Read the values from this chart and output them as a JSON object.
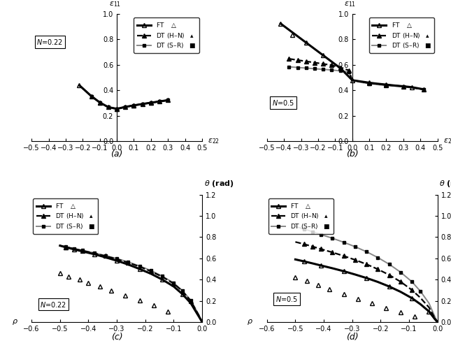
{
  "a_FT_x": [
    -0.22,
    -0.15,
    -0.1,
    -0.05,
    0.0,
    0.05,
    0.1,
    0.15,
    0.2,
    0.25,
    0.3
  ],
  "a_FT_y": [
    0.44,
    0.355,
    0.305,
    0.268,
    0.255,
    0.27,
    0.282,
    0.293,
    0.303,
    0.313,
    0.323
  ],
  "a_FT_mx": [
    -0.22,
    -0.1,
    0.0,
    0.1,
    0.2,
    0.3
  ],
  "a_FT_my": [
    0.44,
    0.305,
    0.255,
    0.282,
    0.303,
    0.323
  ],
  "a_DThn_mx": [
    -0.15,
    -0.1,
    -0.05,
    0.0,
    0.05,
    0.1,
    0.15,
    0.2,
    0.25
  ],
  "a_DThn_my": [
    0.355,
    0.305,
    0.268,
    0.255,
    0.27,
    0.282,
    0.293,
    0.303,
    0.313
  ],
  "a_DTsr_mx": [
    -0.15,
    -0.1,
    -0.05,
    0.0,
    0.05,
    0.1,
    0.15,
    0.2,
    0.25,
    0.3
  ],
  "a_DTsr_my": [
    0.355,
    0.305,
    0.268,
    0.255,
    0.27,
    0.282,
    0.293,
    0.303,
    0.313,
    0.323
  ],
  "b_FT_x": [
    -0.42,
    -0.37,
    -0.32,
    -0.27,
    -0.22,
    -0.17,
    -0.12,
    -0.07,
    -0.02,
    0.0,
    0.05,
    0.1,
    0.15,
    0.2,
    0.25,
    0.3,
    0.35,
    0.42
  ],
  "b_FT_y": [
    0.925,
    0.875,
    0.825,
    0.775,
    0.725,
    0.675,
    0.625,
    0.575,
    0.508,
    0.48,
    0.47,
    0.46,
    0.452,
    0.445,
    0.438,
    0.432,
    0.425,
    0.408
  ],
  "b_FT_mx": [
    -0.42,
    -0.35,
    -0.27,
    -0.17,
    -0.07,
    0.0,
    0.1,
    0.2,
    0.35,
    0.42
  ],
  "b_FT_my": [
    0.925,
    0.835,
    0.775,
    0.675,
    0.575,
    0.48,
    0.46,
    0.445,
    0.425,
    0.408
  ],
  "b_DThn_x": [
    -0.37,
    -0.32,
    -0.27,
    -0.22,
    -0.17,
    -0.12,
    -0.07,
    -0.02,
    0.0,
    0.05,
    0.1,
    0.15,
    0.2,
    0.3,
    0.42
  ],
  "b_DThn_y": [
    0.648,
    0.638,
    0.628,
    0.618,
    0.608,
    0.598,
    0.578,
    0.558,
    0.48,
    0.468,
    0.458,
    0.45,
    0.443,
    0.432,
    0.408
  ],
  "b_DThn_mx": [
    -0.37,
    -0.32,
    -0.27,
    -0.22,
    -0.17,
    -0.12,
    -0.07,
    -0.02,
    0.1,
    0.2,
    0.3
  ],
  "b_DThn_my": [
    0.648,
    0.638,
    0.628,
    0.618,
    0.608,
    0.598,
    0.578,
    0.558,
    0.458,
    0.443,
    0.432
  ],
  "b_DTsr_x": [
    -0.37,
    -0.32,
    -0.27,
    -0.22,
    -0.17,
    -0.12,
    -0.07,
    -0.02,
    0.0,
    0.05,
    0.1,
    0.15,
    0.2,
    0.3,
    0.42
  ],
  "b_DTsr_y": [
    0.585,
    0.58,
    0.575,
    0.57,
    0.565,
    0.56,
    0.553,
    0.545,
    0.48,
    0.463,
    0.453,
    0.445,
    0.438,
    0.428,
    0.408
  ],
  "b_DTsr_mx": [
    -0.37,
    -0.32,
    -0.27,
    -0.22,
    -0.17,
    -0.12,
    -0.07,
    -0.02,
    0.1,
    0.2,
    0.3,
    0.42
  ],
  "b_DTsr_my": [
    0.585,
    0.58,
    0.575,
    0.57,
    0.565,
    0.56,
    0.553,
    0.545,
    0.453,
    0.438,
    0.428,
    0.408
  ],
  "c_FT_x": [
    -0.5,
    -0.48,
    -0.45,
    -0.42,
    -0.38,
    -0.34,
    -0.3,
    -0.26,
    -0.22,
    -0.18,
    -0.14,
    -0.1,
    -0.07,
    -0.04,
    -0.01,
    0.0
  ],
  "c_FT_y": [
    0.72,
    0.705,
    0.685,
    0.665,
    0.64,
    0.61,
    0.578,
    0.542,
    0.5,
    0.455,
    0.4,
    0.335,
    0.265,
    0.178,
    0.045,
    0.0
  ],
  "c_FT_mx": [
    -0.48,
    -0.45,
    -0.38,
    -0.3,
    -0.22,
    -0.14,
    -0.07
  ],
  "c_FT_my": [
    0.705,
    0.685,
    0.64,
    0.578,
    0.5,
    0.4,
    0.265
  ],
  "c_DThn_x": [
    -0.5,
    -0.48,
    -0.45,
    -0.42,
    -0.38,
    -0.34,
    -0.3,
    -0.26,
    -0.22,
    -0.18,
    -0.14,
    -0.1,
    -0.07,
    -0.04,
    -0.01,
    0.0
  ],
  "c_DThn_y": [
    0.72,
    0.707,
    0.69,
    0.672,
    0.648,
    0.622,
    0.593,
    0.56,
    0.522,
    0.478,
    0.426,
    0.362,
    0.293,
    0.2,
    0.055,
    0.0
  ],
  "c_DThn_mx": [
    -0.48,
    -0.42,
    -0.34,
    -0.26,
    -0.18,
    -0.1,
    -0.04
  ],
  "c_DThn_my": [
    0.707,
    0.672,
    0.622,
    0.56,
    0.478,
    0.362,
    0.2
  ],
  "c_DTsr_x": [
    -0.5,
    -0.48,
    -0.45,
    -0.42,
    -0.38,
    -0.34,
    -0.3,
    -0.26,
    -0.22,
    -0.18,
    -0.14,
    -0.1,
    -0.07,
    -0.04,
    -0.01,
    0.0
  ],
  "c_DTsr_y": [
    0.72,
    0.708,
    0.692,
    0.675,
    0.652,
    0.626,
    0.598,
    0.566,
    0.528,
    0.485,
    0.432,
    0.368,
    0.298,
    0.205,
    0.06,
    0.0
  ],
  "c_DTsr_mx": [
    -0.48,
    -0.45,
    -0.42,
    -0.38,
    -0.34,
    -0.3,
    -0.26,
    -0.22,
    -0.18,
    -0.14,
    -0.1,
    -0.07,
    -0.04
  ],
  "c_DTsr_my": [
    0.708,
    0.692,
    0.675,
    0.652,
    0.626,
    0.598,
    0.566,
    0.528,
    0.485,
    0.432,
    0.368,
    0.298,
    0.205
  ],
  "c_open_x": [
    -0.5,
    -0.47,
    -0.43,
    -0.4,
    -0.36,
    -0.32,
    -0.27,
    -0.22,
    -0.17,
    -0.12
  ],
  "c_open_y": [
    0.46,
    0.43,
    0.4,
    0.37,
    0.335,
    0.295,
    0.253,
    0.205,
    0.155,
    0.1
  ],
  "d_FT_x": [
    -0.5,
    -0.47,
    -0.44,
    -0.41,
    -0.37,
    -0.33,
    -0.29,
    -0.25,
    -0.21,
    -0.17,
    -0.13,
    -0.09,
    -0.06,
    -0.03,
    -0.01,
    0.0
  ],
  "d_FT_y": [
    0.59,
    0.572,
    0.553,
    0.533,
    0.507,
    0.479,
    0.448,
    0.415,
    0.378,
    0.335,
    0.285,
    0.225,
    0.168,
    0.1,
    0.03,
    0.0
  ],
  "d_FT_mx": [
    -0.47,
    -0.41,
    -0.33,
    -0.25,
    -0.17,
    -0.09,
    -0.03
  ],
  "d_FT_my": [
    0.572,
    0.533,
    0.479,
    0.415,
    0.335,
    0.225,
    0.1
  ],
  "d_DThn_x": [
    -0.5,
    -0.47,
    -0.44,
    -0.41,
    -0.37,
    -0.33,
    -0.29,
    -0.25,
    -0.21,
    -0.17,
    -0.13,
    -0.09,
    -0.06,
    -0.03,
    -0.01,
    0.0
  ],
  "d_DThn_y": [
    0.755,
    0.735,
    0.712,
    0.688,
    0.657,
    0.623,
    0.586,
    0.545,
    0.498,
    0.444,
    0.38,
    0.302,
    0.228,
    0.138,
    0.04,
    0.0
  ],
  "d_DThn_mx": [
    -0.47,
    -0.44,
    -0.41,
    -0.37,
    -0.33,
    -0.29,
    -0.25,
    -0.21,
    -0.17,
    -0.13,
    -0.09
  ],
  "d_DThn_my": [
    0.735,
    0.712,
    0.688,
    0.657,
    0.623,
    0.586,
    0.545,
    0.498,
    0.444,
    0.38,
    0.302
  ],
  "d_DTsr_x": [
    -0.5,
    -0.47,
    -0.44,
    -0.41,
    -0.37,
    -0.33,
    -0.29,
    -0.25,
    -0.21,
    -0.17,
    -0.13,
    -0.09,
    -0.06,
    -0.03,
    -0.01,
    0.0
  ],
  "d_DTsr_y": [
    0.9,
    0.877,
    0.852,
    0.825,
    0.79,
    0.752,
    0.71,
    0.663,
    0.608,
    0.545,
    0.47,
    0.38,
    0.29,
    0.178,
    0.055,
    0.0
  ],
  "d_DTsr_mx": [
    -0.47,
    -0.44,
    -0.41,
    -0.37,
    -0.33,
    -0.29,
    -0.25,
    -0.21,
    -0.17,
    -0.13,
    -0.09,
    -0.06
  ],
  "d_DTsr_my": [
    0.877,
    0.852,
    0.825,
    0.79,
    0.752,
    0.71,
    0.663,
    0.608,
    0.545,
    0.47,
    0.38,
    0.29
  ],
  "d_open_x": [
    -0.5,
    -0.46,
    -0.42,
    -0.38,
    -0.33,
    -0.28,
    -0.23,
    -0.18,
    -0.13,
    -0.08
  ],
  "d_open_y": [
    0.42,
    0.385,
    0.348,
    0.31,
    0.265,
    0.22,
    0.175,
    0.132,
    0.092,
    0.055
  ],
  "color_FT": "#000000",
  "color_DThn": "#000000",
  "color_DTsr": "#888888",
  "lw_FT": 2.2,
  "lw_DThn": 1.6,
  "lw_DTsr": 1.4,
  "xlim_ab": [
    -0.5,
    0.5
  ],
  "ylim_ab": [
    0.0,
    1.0
  ],
  "xticks_ab": [
    -0.5,
    -0.4,
    -0.3,
    -0.2,
    -0.1,
    0.0,
    0.1,
    0.2,
    0.3,
    0.4,
    0.5
  ],
  "yticks_ab": [
    0.0,
    0.2,
    0.4,
    0.6,
    0.8,
    1.0
  ],
  "xlim_cd": [
    -0.6,
    0.0
  ],
  "ylim_cd": [
    0.0,
    1.2
  ],
  "xticks_cd": [
    -0.6,
    -0.5,
    -0.4,
    -0.3,
    -0.2,
    -0.1,
    0.0
  ],
  "yticks_cd": [
    0.0,
    0.2,
    0.4,
    0.6,
    0.8,
    1.0,
    1.2
  ]
}
